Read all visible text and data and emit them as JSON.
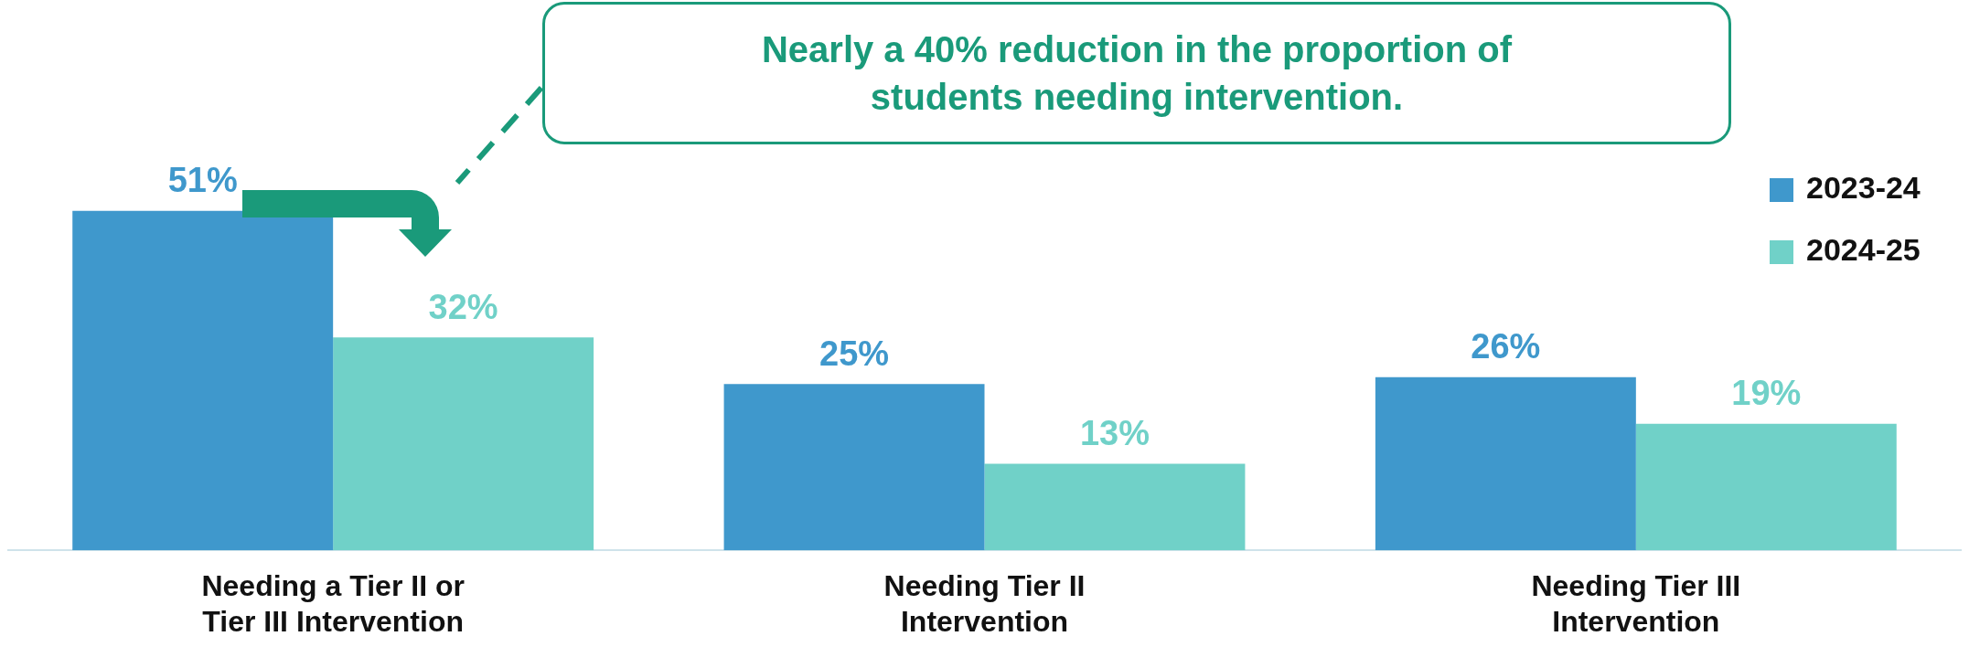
{
  "chart_data": {
    "type": "bar",
    "categories": [
      "Needing a Tier II or Tier III Intervention",
      "Needing Tier II Intervention",
      "Needing Tier III Intervention"
    ],
    "series": [
      {
        "name": "2023-24",
        "color": "#3f98cc",
        "values": [
          51,
          25,
          26
        ],
        "value_labels": [
          "51%",
          "25%",
          "26%"
        ]
      },
      {
        "name": "2024-25",
        "color": "#70d1c8",
        "values": [
          32,
          13,
          19
        ],
        "value_labels": [
          "32%",
          "13%",
          "19%"
        ]
      }
    ],
    "annotations": [
      "Nearly a 40% reduction in the proportion of students needing intervention."
    ],
    "legend": "top right",
    "grid": false
  }
}
